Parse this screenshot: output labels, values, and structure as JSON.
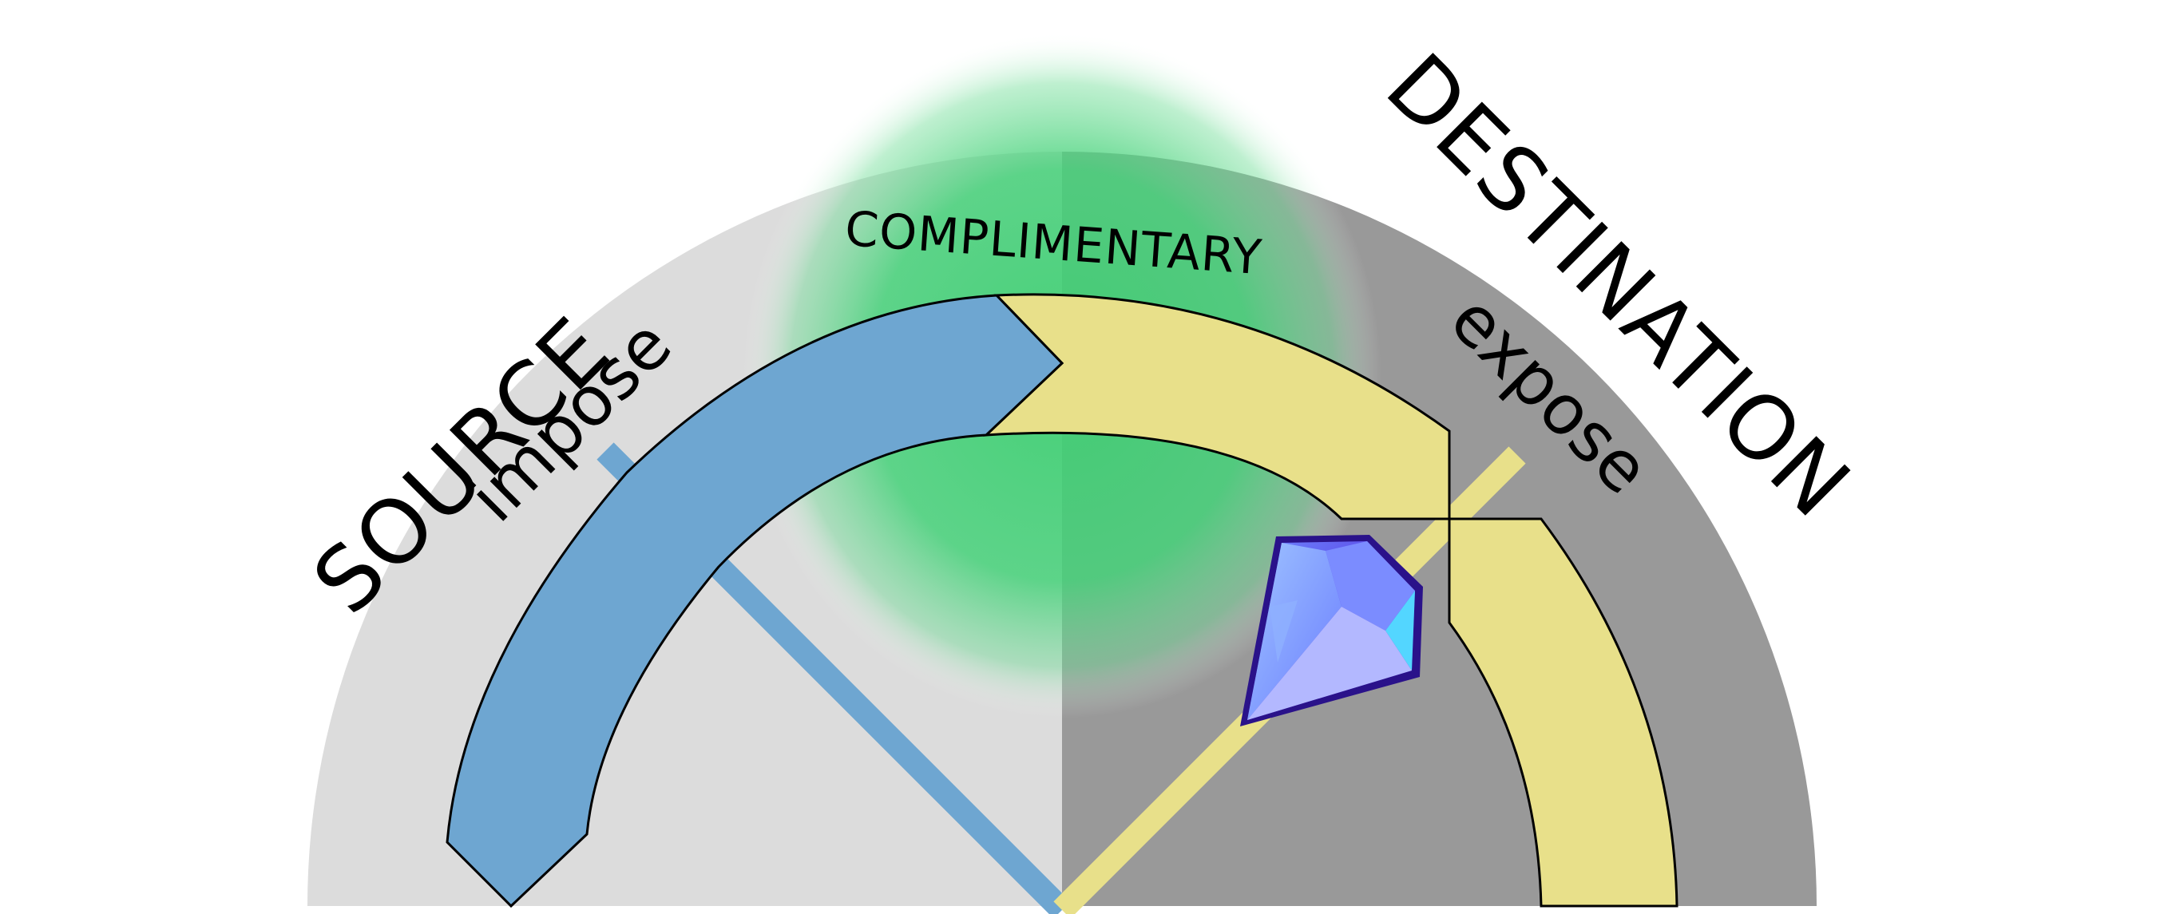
{
  "labels": {
    "source": "SOURCE",
    "destination": "DESTINATION",
    "complimentary": "COMPLIMENTARY",
    "impose": "impose",
    "expose": "expose"
  },
  "colors": {
    "source_half": "#dcdcdc",
    "destination_half": "#999999",
    "source_band": "#6ea6d1",
    "destination_band": "#e8e08a",
    "complimentary_glow": "#3ecf72",
    "gem": "#5b45e0"
  },
  "icons": {
    "gem": "blue-gem-icon"
  }
}
